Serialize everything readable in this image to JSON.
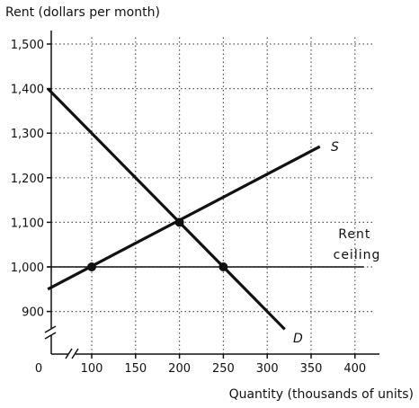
{
  "chart_data": {
    "type": "line",
    "ylabel": "Rent (dollars per month)",
    "xlabel": "Quantity (thousands of units)",
    "origin_label": "0",
    "x_ticks": [
      100,
      150,
      200,
      250,
      300,
      350,
      400
    ],
    "x_tick_labels": [
      "100",
      "150",
      "200",
      "250",
      "300",
      "350",
      "400"
    ],
    "y_ticks": [
      900,
      1000,
      1100,
      1200,
      1300,
      1400,
      1500
    ],
    "y_tick_labels": [
      "900",
      "1,000",
      "1,100",
      "1,200",
      "1,300",
      "1,400",
      "1,500"
    ],
    "xlim": [
      50,
      420
    ],
    "ylim": [
      820,
      1560
    ],
    "axis_breaks": [
      "x",
      "y"
    ],
    "grid": true,
    "series": [
      {
        "name": "S",
        "role": "supply",
        "points": [
          [
            50,
            950
          ],
          [
            360,
            1270
          ]
        ]
      },
      {
        "name": "D",
        "role": "demand",
        "points": [
          [
            50,
            1400
          ],
          [
            320,
            860
          ]
        ]
      }
    ],
    "hlines": [
      {
        "y": 1000,
        "x_start": 50,
        "x_end": 410,
        "label": "Rent ceiling"
      }
    ],
    "markers": [
      {
        "x": 100,
        "y": 1000
      },
      {
        "x": 200,
        "y": 1100
      },
      {
        "x": 250,
        "y": 1000
      }
    ]
  }
}
